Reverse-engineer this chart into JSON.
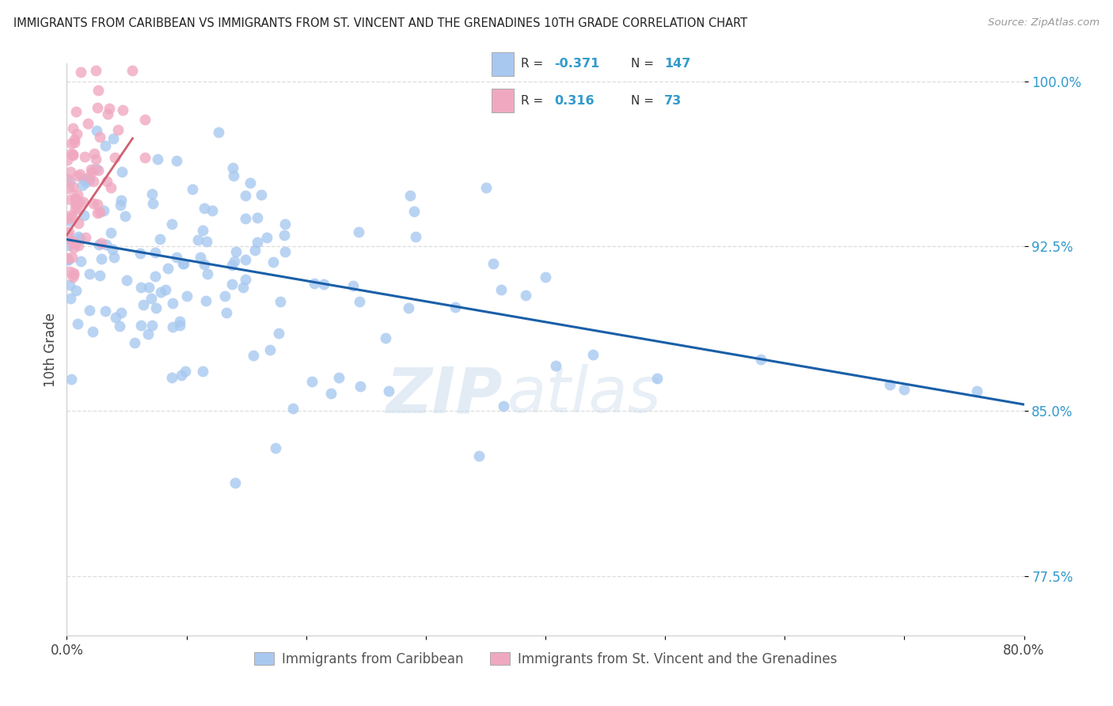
{
  "title": "IMMIGRANTS FROM CARIBBEAN VS IMMIGRANTS FROM ST. VINCENT AND THE GRENADINES 10TH GRADE CORRELATION CHART",
  "source": "Source: ZipAtlas.com",
  "xlabel_blue": "Immigrants from Caribbean",
  "xlabel_pink": "Immigrants from St. Vincent and the Grenadines",
  "ylabel": "10th Grade",
  "R_blue": -0.371,
  "N_blue": 147,
  "R_pink": 0.316,
  "N_pink": 73,
  "blue_color": "#a8c8f0",
  "pink_color": "#f0a8c0",
  "line_blue": "#1a5fa8",
  "line_pink": "#d06070",
  "xmin": 0.0,
  "xmax": 0.8,
  "ymin": 0.748,
  "ymax": 1.008,
  "yticks": [
    0.775,
    0.85,
    0.925,
    1.0
  ],
  "ytick_labels": [
    "77.5%",
    "85.0%",
    "92.5%",
    "100.0%"
  ],
  "xtick_left": "0.0%",
  "xtick_right": "80.0%",
  "watermark_zip": "ZIP",
  "watermark_atlas": "atlas",
  "blue_line_y0": 0.928,
  "blue_line_y1": 0.853,
  "pink_line_x0": 0.0,
  "pink_line_x1": 0.055
}
